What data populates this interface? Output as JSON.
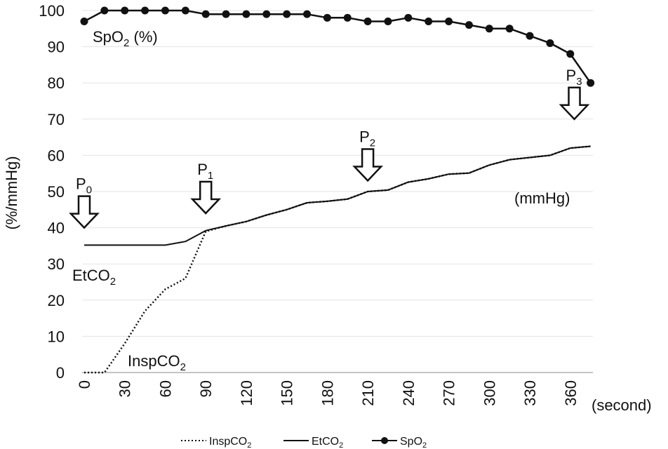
{
  "chart_data": {
    "type": "line",
    "title": "",
    "xlabel": "(second)",
    "ylabel": "(%/mmHg)",
    "xlim": [
      0,
      370
    ],
    "ylim": [
      0,
      100
    ],
    "x_ticks": [
      0,
      30,
      60,
      90,
      120,
      150,
      180,
      210,
      240,
      270,
      300,
      330,
      360
    ],
    "y_ticks": [
      0,
      10,
      20,
      30,
      40,
      50,
      60,
      70,
      80,
      90,
      100
    ],
    "grid": "horizontal",
    "legend_position": "bottom",
    "series": [
      {
        "name": "InspCO2",
        "label_text": "InspCO",
        "label_sub": "2",
        "color": "#111111",
        "line_style": "dotted",
        "x": [
          0,
          15,
          30,
          45,
          60,
          75,
          90,
          105,
          120,
          135,
          150,
          165,
          180,
          195,
          210,
          225,
          240,
          255,
          270,
          285,
          300,
          315,
          330,
          345,
          360,
          375
        ],
        "values": [
          0,
          0,
          8,
          17,
          23,
          26,
          39,
          40.5,
          41.7,
          43.5,
          45,
          46.9,
          47.3,
          47.9,
          50,
          50.4,
          52.6,
          53.5,
          54.8,
          55.1,
          57.3,
          58.8,
          59.4,
          60,
          62,
          62.5
        ]
      },
      {
        "name": "EtCO2",
        "label_text": "EtCO",
        "label_sub": "2",
        "color": "#111111",
        "line_style": "solid",
        "x": [
          0,
          15,
          30,
          45,
          60,
          75,
          90,
          105,
          120,
          135,
          150,
          165,
          180,
          195,
          210,
          225,
          240,
          255,
          270,
          285,
          300,
          315,
          330,
          345,
          360,
          375
        ],
        "values": [
          35.2,
          35.2,
          35.2,
          35.2,
          35.2,
          36.2,
          39.2,
          40.5,
          41.7,
          43.5,
          45,
          46.9,
          47.3,
          47.9,
          50,
          50.4,
          52.6,
          53.5,
          54.8,
          55.1,
          57.3,
          58.8,
          59.4,
          60,
          62,
          62.5
        ]
      },
      {
        "name": "SpO2",
        "label_text": "SpO",
        "label_sub": "2",
        "label_suffix": " (%)",
        "color": "#111111",
        "line_style": "solid",
        "markers": true,
        "x": [
          0,
          15,
          30,
          45,
          60,
          75,
          90,
          105,
          120,
          135,
          150,
          165,
          180,
          195,
          210,
          225,
          240,
          255,
          270,
          285,
          300,
          315,
          330,
          345,
          360,
          375
        ],
        "values": [
          97,
          100,
          100,
          100,
          100,
          100,
          99,
          99,
          99,
          99,
          99,
          99,
          98,
          98,
          97,
          97,
          98,
          97,
          97,
          96,
          95,
          95,
          93,
          91,
          88,
          80
        ]
      }
    ],
    "annotations": [
      {
        "id": "p0",
        "label": "P",
        "sub": "0",
        "x": 0,
        "y": 40
      },
      {
        "id": "p1",
        "label": "P",
        "sub": "1",
        "x": 90,
        "y": 44
      },
      {
        "id": "p2",
        "label": "P",
        "sub": "2",
        "x": 210,
        "y": 53
      },
      {
        "id": "p3",
        "label": "P",
        "sub": "3",
        "x": 363,
        "y": 70
      }
    ],
    "unit_note": "(mmHg)"
  }
}
